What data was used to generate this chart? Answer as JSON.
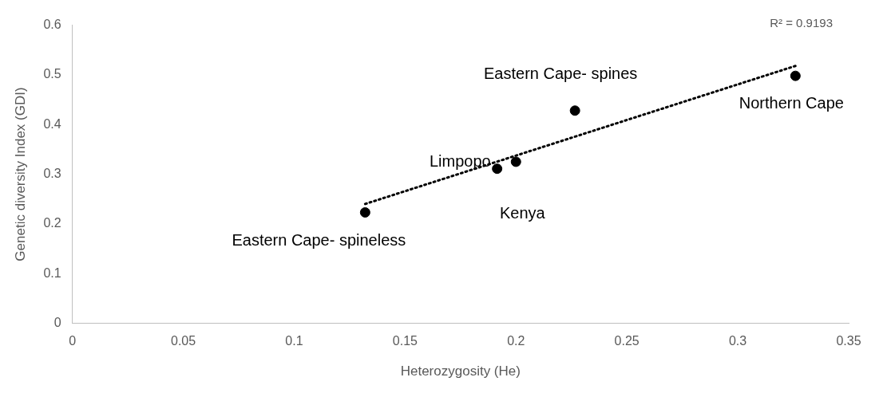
{
  "chart_data": {
    "type": "scatter",
    "xlabel": "Heterozygosity (He)",
    "ylabel": "Genetic diversity Index (GDI)",
    "xlim": [
      0,
      0.35
    ],
    "xticks": [
      0,
      0.05,
      0.1,
      0.15,
      0.2,
      0.25,
      0.3,
      0.35
    ],
    "ylim": [
      0,
      0.6
    ],
    "yticks": [
      0,
      0.1,
      0.2,
      0.3,
      0.4,
      0.5,
      0.6
    ],
    "grid": false,
    "legend": false,
    "marker": "circle",
    "series": [
      {
        "color": "#000000",
        "x": [
          0.132,
          0.1915,
          0.2,
          0.2266,
          0.326
        ],
        "values": [
          0.223,
          0.311,
          0.325,
          0.428,
          0.498
        ]
      },
      {
        "type": "line",
        "color": "#000000",
        "line_style": "dotted",
        "marker": "none",
        "x": [
          0.132,
          0.326
        ],
        "values": [
          0.24,
          0.518
        ]
      }
    ],
    "annotations": [
      {
        "text": "Eastern Cape- spineless",
        "x": 0.132,
        "y": 0.223
      },
      {
        "text": "Limpopo",
        "x": 0.1915,
        "y": 0.311
      },
      {
        "text": "Kenya",
        "x": 0.2,
        "y": 0.325
      },
      {
        "text": "Eastern Cape- spines",
        "x": 0.2266,
        "y": 0.428
      },
      {
        "text": "Northern Cape",
        "x": 0.326,
        "y": 0.498
      },
      "R² = 0.9193"
    ]
  }
}
